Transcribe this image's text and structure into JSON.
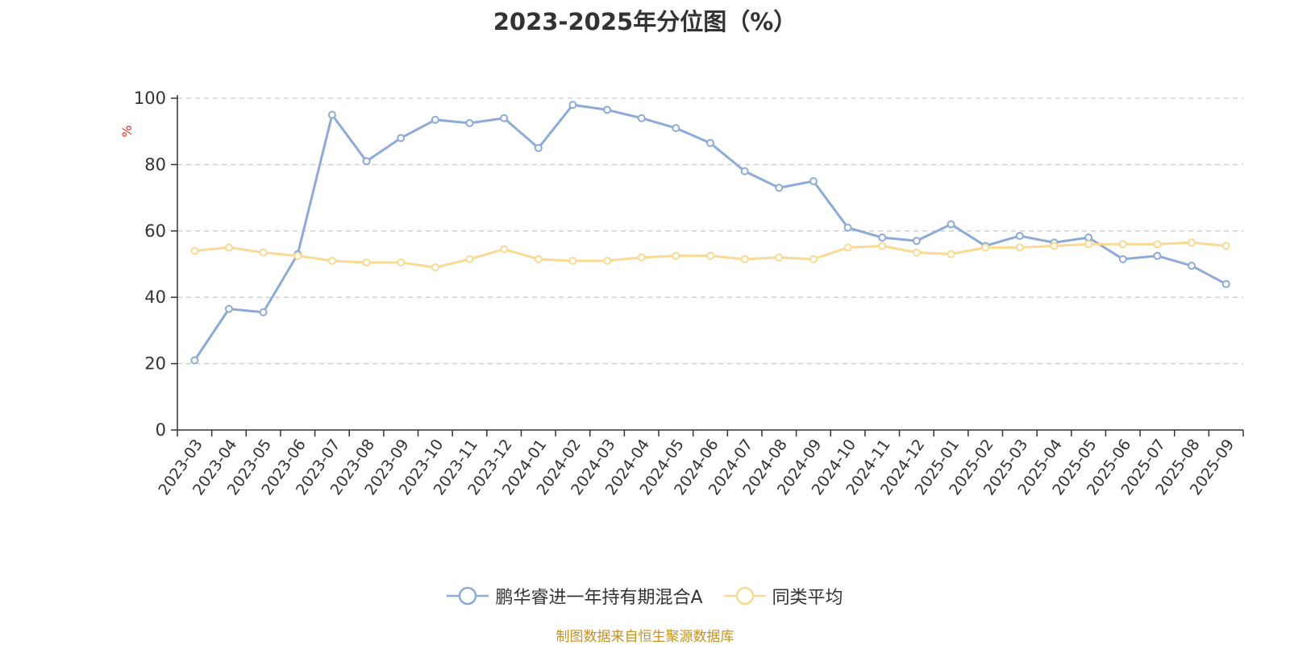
{
  "chart_data": {
    "type": "line",
    "title": "2023-2025年分位图（%）",
    "ylabel": "%",
    "xlabel": "",
    "ylim": [
      0,
      100
    ],
    "yticks": [
      0,
      20,
      40,
      60,
      80,
      100
    ],
    "grid": true,
    "legend_position": "bottom",
    "categories": [
      "2023-03",
      "2023-04",
      "2023-05",
      "2023-06",
      "2023-07",
      "2023-08",
      "2023-09",
      "2023-10",
      "2023-11",
      "2023-12",
      "2024-01",
      "2024-02",
      "2024-03",
      "2024-04",
      "2024-05",
      "2024-06",
      "2024-07",
      "2024-08",
      "2024-09",
      "2024-10",
      "2024-11",
      "2024-12",
      "2025-01",
      "2025-02",
      "2025-03",
      "2025-04",
      "2025-05",
      "2025-06",
      "2025-07",
      "2025-08",
      "2025-09"
    ],
    "series": [
      {
        "name": "鹏华睿进一年持有期混合A",
        "color": "#8eabd8",
        "values": [
          21,
          36.5,
          35.5,
          53,
          95,
          81,
          88,
          93.5,
          92.5,
          94,
          85,
          98,
          96.5,
          94,
          91,
          86.5,
          78,
          73,
          75,
          61,
          58,
          57,
          62,
          55.5,
          58.5,
          56.5,
          58,
          51.5,
          52.5,
          49.5,
          44
        ]
      },
      {
        "name": "同类平均",
        "color": "#fad993",
        "values": [
          54,
          55,
          53.5,
          52.5,
          51,
          50.5,
          50.5,
          49,
          51.5,
          54.5,
          51.5,
          51,
          51,
          52,
          52.5,
          52.5,
          51.5,
          52,
          51.5,
          55,
          55.5,
          53.5,
          53,
          55,
          55,
          55.5,
          56,
          56,
          56,
          56.5,
          55.5
        ]
      }
    ]
  },
  "source_text": "制图数据来自恒生聚源数据库",
  "colors": {
    "axis": "#333333",
    "grid": "#cccccc",
    "ylabel": "#e5322b",
    "source": "#c8911f"
  }
}
